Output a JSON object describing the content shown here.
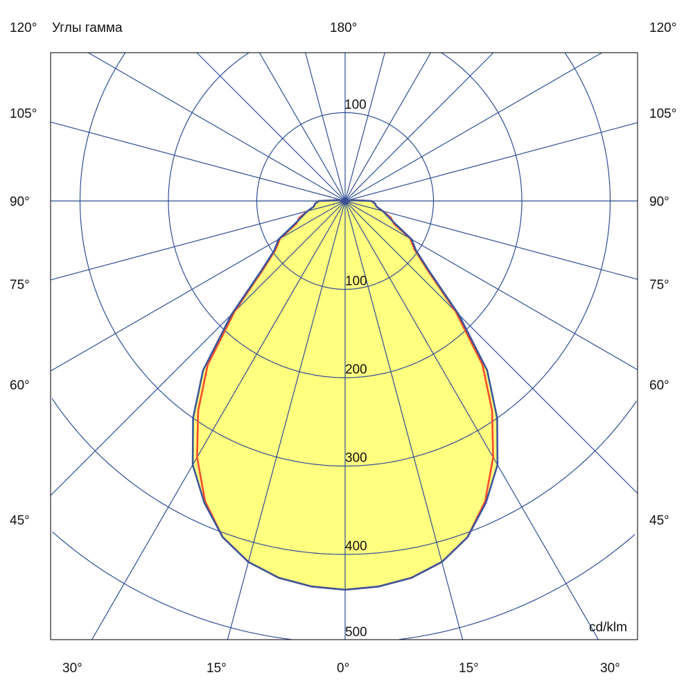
{
  "chart_data": {
    "type": "polar",
    "title": "Углы гамма",
    "unit_label": "cd/klm",
    "radial_ticks": [
      100,
      200,
      300,
      400,
      500
    ],
    "top_radial_tick": "100",
    "rmax": 500,
    "angle_step_deg": 15,
    "grid": true,
    "top_label": "180°",
    "side_labels": [
      "120°",
      "105°",
      "90°",
      "75°",
      "60°",
      "45°"
    ],
    "bottom_labels": [
      "30°",
      "15°",
      "0°",
      "15°",
      "30°"
    ],
    "angles_deg": [
      0,
      5,
      10,
      15,
      20,
      25,
      30,
      35,
      40,
      45,
      50,
      55,
      60,
      65,
      70,
      75,
      80,
      85,
      90,
      95,
      100
    ],
    "series": [
      {
        "values": [
          440,
          438,
          433,
          423,
          405,
          375,
          335,
          290,
          242,
          177,
          122,
          96,
          85,
          61,
          55,
          44,
          36,
          34,
          30,
          10,
          0
        ],
        "color": "#FF4A2A"
      },
      {
        "values": [
          440,
          438,
          433,
          423,
          405,
          377,
          345,
          300,
          250,
          182,
          125,
          98,
          87,
          64,
          52,
          44,
          36,
          34,
          30,
          10,
          0
        ],
        "color": "#3A559A"
      }
    ],
    "colors": {
      "grid": "#2E4C94",
      "fill": "#FFFF80",
      "c0": "#3A559A",
      "c90": "#FF4A2A"
    }
  }
}
